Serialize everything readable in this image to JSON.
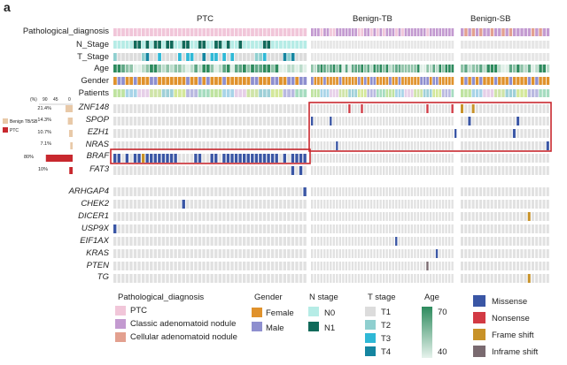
{
  "panel_label": "a",
  "groups": [
    {
      "name": "PTC",
      "count": 48
    },
    {
      "name": "Benign-TB",
      "count": 46
    },
    {
      "name": "Benign-SB",
      "count": 24
    }
  ],
  "annotation_rows": [
    "Pathological_diagnosis",
    "N_Stage",
    "T_Stage",
    "Age",
    "Gender",
    "Patients"
  ],
  "frequency_axis": {
    "unit": "(%)",
    "ticks": [
      "90",
      "45",
      "0"
    ]
  },
  "side_legend": [
    {
      "label": "Benign TB/SB",
      "color": "#e8c9a8"
    },
    {
      "label": "PTC",
      "color": "#c8282e"
    }
  ],
  "genes_top": [
    {
      "name": "ZNF148",
      "pct": "21.4%"
    },
    {
      "name": "SPOP",
      "pct": "14.3%"
    },
    {
      "name": "EZH1",
      "pct": "10.7%"
    },
    {
      "name": "NRAS",
      "pct": "7.1%"
    },
    {
      "name": "BRAF",
      "pct": "80%"
    },
    {
      "name": "FAT3",
      "pct": "10%"
    }
  ],
  "genes_bottom": [
    "ARHGAP4",
    "CHEK2",
    "DICER1",
    "USP9X",
    "EIF1AX",
    "KRAS",
    "PTEN",
    "TG"
  ],
  "mutations": [
    {
      "gene": "BRAF",
      "group": "PTC",
      "cols": [
        0,
        1,
        3,
        5,
        6,
        8,
        9,
        10,
        11,
        12,
        13,
        14,
        15,
        20,
        21,
        24,
        25,
        27,
        28,
        29,
        30,
        31,
        32,
        33,
        34,
        35,
        36,
        37,
        38,
        39,
        40,
        42,
        44,
        45,
        46,
        47
      ],
      "type": "Missense"
    },
    {
      "gene": "BRAF",
      "group": "PTC",
      "cols": [
        7
      ],
      "type": "Frame shift"
    },
    {
      "gene": "FAT3",
      "group": "PTC",
      "cols": [
        44,
        46
      ],
      "type": "Missense"
    },
    {
      "gene": "ARHGAP4",
      "group": "PTC",
      "cols": [
        47
      ],
      "type": "Missense"
    },
    {
      "gene": "CHEK2",
      "group": "PTC",
      "cols": [
        17
      ],
      "type": "Missense"
    },
    {
      "gene": "USP9X",
      "group": "PTC",
      "cols": [
        0
      ],
      "type": "Missense"
    },
    {
      "gene": "ZNF148",
      "group": "Benign-TB",
      "cols": [
        12,
        16,
        37,
        45
      ],
      "type": "Nonsense"
    },
    {
      "gene": "ZNF148",
      "group": "Benign-SB",
      "cols": [
        0,
        3
      ],
      "type": "Frame shift"
    },
    {
      "gene": "SPOP",
      "group": "Benign-TB",
      "cols": [
        0,
        6
      ],
      "type": "Missense"
    },
    {
      "gene": "SPOP",
      "group": "Benign-SB",
      "cols": [
        2,
        15
      ],
      "type": "Missense"
    },
    {
      "gene": "EZH1",
      "group": "Benign-TB",
      "cols": [
        46
      ],
      "type": "Missense"
    },
    {
      "gene": "EZH1",
      "group": "Benign-SB",
      "cols": [
        14
      ],
      "type": "Missense"
    },
    {
      "gene": "NRAS",
      "group": "Benign-TB",
      "cols": [
        8
      ],
      "type": "Missense"
    },
    {
      "gene": "NRAS",
      "group": "Benign-SB",
      "cols": [
        23
      ],
      "type": "Missense"
    },
    {
      "gene": "DICER1",
      "group": "Benign-SB",
      "cols": [
        18
      ],
      "type": "Frame shift"
    },
    {
      "gene": "EIF1AX",
      "group": "Benign-TB",
      "cols": [
        27
      ],
      "type": "Missense"
    },
    {
      "gene": "KRAS",
      "group": "Benign-TB",
      "cols": [
        40
      ],
      "type": "Missense"
    },
    {
      "gene": "PTEN",
      "group": "Benign-TB",
      "cols": [
        37
      ],
      "type": "Inframe shift"
    },
    {
      "gene": "TG",
      "group": "Benign-SB",
      "cols": [
        18
      ],
      "type": "Frame shift"
    }
  ],
  "legend": {
    "pathological": {
      "title": "Pathological_diagnosis",
      "items": [
        {
          "label": "PTC",
          "color": "#f1c6d9"
        },
        {
          "label": "Classic adenomatoid nodule",
          "color": "#c39ad0"
        },
        {
          "label": "Cellular adenomatoid nodule",
          "color": "#e3a08f"
        }
      ]
    },
    "gender": {
      "title": "Gender",
      "items": [
        {
          "label": "Female",
          "color": "#e0922c"
        },
        {
          "label": "Male",
          "color": "#8e8fcf"
        }
      ]
    },
    "n_stage": {
      "title": "N stage",
      "items": [
        {
          "label": "N0",
          "color": "#b6ece6"
        },
        {
          "label": "N1",
          "color": "#116a5a"
        }
      ]
    },
    "t_stage": {
      "title": "T stage",
      "items": [
        {
          "label": "T1",
          "color": "#dcdcdc"
        },
        {
          "label": "T2",
          "color": "#8fcfcf"
        },
        {
          "label": "T3",
          "color": "#2fb8d6"
        },
        {
          "label": "T4",
          "color": "#1585a0"
        }
      ]
    },
    "age": {
      "title": "Age",
      "max_label": "70",
      "min_label": "40",
      "gradient": [
        "#2e8b5e",
        "#e6f2ec"
      ]
    },
    "mutation_types": {
      "items": [
        {
          "label": "Missense",
          "color": "#3a56a5"
        },
        {
          "label": "Nonsense",
          "color": "#d23a44"
        },
        {
          "label": "Frame shift",
          "color": "#c89228"
        },
        {
          "label": "Inframe shift",
          "color": "#7a6a70"
        }
      ]
    }
  },
  "colors": {
    "empty_cell": "#e1e1e1",
    "highlight_box": "#c8282e",
    "patients_palette": [
      "#bfe3a0",
      "#a8d4e8",
      "#e6cfe8",
      "#cfe4a8",
      "#9fd0d8",
      "#d4e89a",
      "#b9b9e0",
      "#a6dcc0"
    ]
  }
}
